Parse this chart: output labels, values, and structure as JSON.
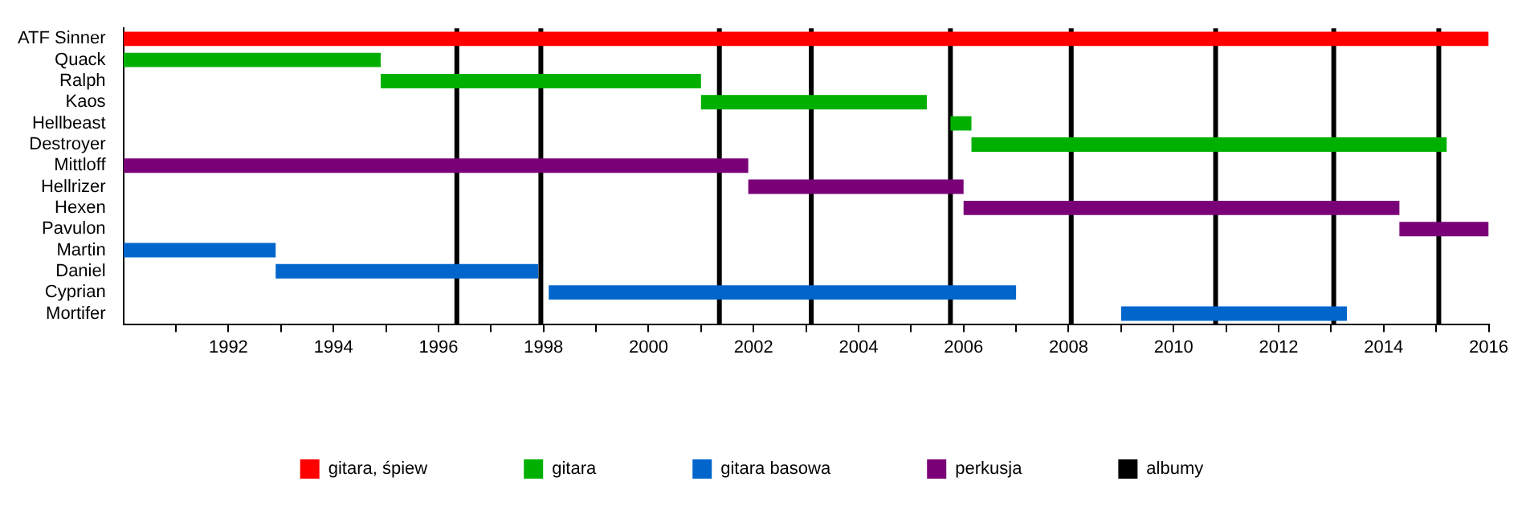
{
  "chart_data": {
    "type": "bar",
    "orientation": "horizontal",
    "legend": "bottom",
    "categories": [
      "ATF Sinner",
      "Quack",
      "Ralph",
      "Kaos",
      "Hellbeast",
      "Destroyer",
      "Mittloff",
      "Hellrizer",
      "Hexen",
      "Pavulon",
      "Martin",
      "Daniel",
      "Cyprian",
      "Mortifer"
    ],
    "xlim": [
      1990,
      2016
    ],
    "xticks": [
      {
        "value": 1991,
        "label": null
      },
      1992,
      {
        "value": 1993,
        "label": null
      },
      1994,
      {
        "value": 1995,
        "label": null
      },
      1996,
      {
        "value": 1997,
        "label": null
      },
      1998,
      {
        "value": 1999,
        "label": null
      },
      2000,
      {
        "value": 2001,
        "label": null
      },
      2002,
      {
        "value": 2003,
        "label": null
      },
      2004,
      {
        "value": 2005,
        "label": null
      },
      2006,
      {
        "value": 2007,
        "label": null
      },
      2008,
      {
        "value": 2009,
        "label": null
      },
      2010,
      {
        "value": 2011,
        "label": null
      },
      2012,
      {
        "value": 2013,
        "label": null
      },
      2014,
      {
        "value": 2015,
        "label": null
      },
      2016
    ],
    "series": [
      {
        "name": "gitara, śpiew",
        "color": "#ff0000",
        "base": [
          1990,
          null,
          null,
          null,
          null,
          null,
          null,
          null,
          null,
          null,
          null,
          null,
          null,
          null
        ],
        "values": [
          26,
          null,
          null,
          null,
          null,
          null,
          null,
          null,
          null,
          null,
          null,
          null,
          null,
          null
        ]
      },
      {
        "name": "gitara",
        "color": "#00b000",
        "base": [
          null,
          1990,
          1994.9,
          2001.0,
          2005.75,
          2006.15,
          null,
          null,
          null,
          null,
          null,
          null,
          null,
          null
        ],
        "values": [
          null,
          4.9,
          6.1,
          4.3,
          0.4,
          9.05,
          null,
          null,
          null,
          null,
          null,
          null,
          null,
          null
        ]
      },
      {
        "name": "gitara basowa",
        "color": "#0066cc",
        "base": [
          null,
          null,
          null,
          null,
          null,
          null,
          null,
          null,
          null,
          null,
          1990,
          1992.9,
          1998.1,
          2009.0
        ],
        "values": [
          null,
          null,
          null,
          null,
          null,
          null,
          null,
          null,
          null,
          null,
          2.9,
          5.0,
          8.9,
          4.3
        ]
      },
      {
        "name": "perkusja",
        "color": "#7a0078",
        "base": [
          null,
          null,
          null,
          null,
          null,
          null,
          1990,
          2001.9,
          2006.0,
          2014.3,
          null,
          null,
          null,
          null
        ],
        "values": [
          null,
          null,
          null,
          null,
          null,
          null,
          11.9,
          4.1,
          8.3,
          1.7,
          null,
          null,
          null,
          null
        ]
      }
    ],
    "ref_lines": [
      {
        "axis": "x",
        "value": 1996.35,
        "label": "albumy",
        "color": "#000000"
      },
      {
        "axis": "x",
        "value": 1997.95,
        "color": "#000000"
      },
      {
        "axis": "x",
        "value": 2001.35,
        "color": "#000000"
      },
      {
        "axis": "x",
        "value": 2003.1,
        "color": "#000000"
      },
      {
        "axis": "x",
        "value": 2005.75,
        "color": "#000000"
      },
      {
        "axis": "x",
        "value": 2008.05,
        "color": "#000000"
      },
      {
        "axis": "x",
        "value": 2010.8,
        "color": "#000000"
      },
      {
        "axis": "x",
        "value": 2013.05,
        "color": "#000000"
      },
      {
        "axis": "x",
        "value": 2015.05,
        "color": "#000000"
      }
    ]
  }
}
